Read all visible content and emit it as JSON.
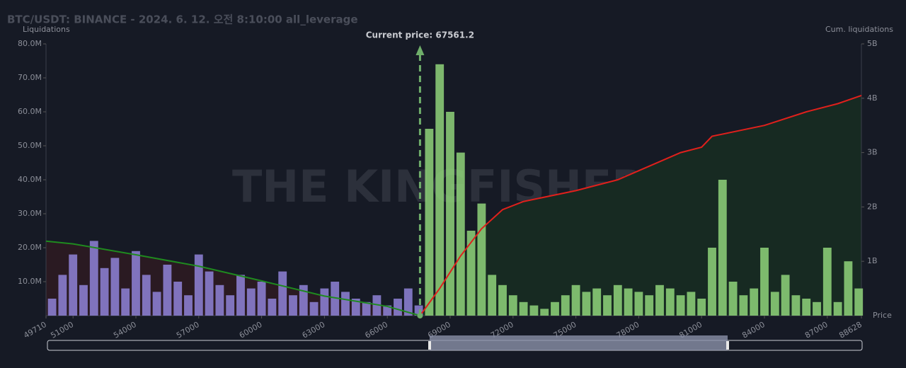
{
  "chart_data": {
    "type": "bar",
    "title": "BTC/USDT: BINANCE - 2024. 6. 12. 오전 8:10:00 all_leverage",
    "y_label": "Liquidations",
    "y2_label": "Cum. liquidations",
    "x_label": "Price",
    "watermark": "THE KINGFISHER",
    "annotation": {
      "text": "Current price: 67561.2",
      "x": 67561.2
    },
    "xlim": [
      49710,
      88628
    ],
    "xticks": [
      49710,
      51000,
      54000,
      57000,
      60000,
      63000,
      66000,
      69000,
      72000,
      75000,
      78000,
      81000,
      84000,
      87000,
      88628
    ],
    "ylim": [
      0,
      80000000
    ],
    "yticks": [
      {
        "value": 10000000,
        "label": "10.0M"
      },
      {
        "value": 20000000,
        "label": "20.0M"
      },
      {
        "value": 30000000,
        "label": "30.0M"
      },
      {
        "value": 40000000,
        "label": "40.0M"
      },
      {
        "value": 50000000,
        "label": "50.0M"
      },
      {
        "value": 60000000,
        "label": "60.0M"
      },
      {
        "value": 70000000,
        "label": "70.0M"
      },
      {
        "value": 80000000,
        "label": "80.0M"
      }
    ],
    "y2lim": [
      0,
      5000000000
    ],
    "y2ticks": [
      {
        "value": 1000000000,
        "label": "1B"
      },
      {
        "value": 2000000000,
        "label": "2B"
      },
      {
        "value": 3000000000,
        "label": "3B"
      },
      {
        "value": 4000000000,
        "label": "4B"
      },
      {
        "value": 5000000000,
        "label": "5B"
      }
    ],
    "series": [
      {
        "type": "bar",
        "color": "#8f84d8",
        "x": [
          50000,
          50500,
          51000,
          51500,
          52000,
          52500,
          53000,
          53500,
          54000,
          54500,
          55000,
          55500,
          56000,
          56500,
          57000,
          57500,
          58000,
          58500,
          59000,
          59500,
          60000,
          60500,
          61000,
          61500,
          62000,
          62500,
          63000,
          63500,
          64000,
          64500,
          65000,
          65500,
          66000,
          66500,
          67000,
          67500
        ],
        "values": [
          5000000,
          12000000,
          18000000,
          9000000,
          22000000,
          14000000,
          17000000,
          8000000,
          19000000,
          12000000,
          7000000,
          15000000,
          10000000,
          6000000,
          18000000,
          13000000,
          9000000,
          6000000,
          12000000,
          8000000,
          10000000,
          5000000,
          13000000,
          6000000,
          9000000,
          4000000,
          8000000,
          10000000,
          7000000,
          5000000,
          4000000,
          6000000,
          3000000,
          5000000,
          8000000,
          3000000
        ]
      },
      {
        "type": "bar",
        "color": "#8fd47a",
        "x": [
          68000,
          68500,
          69000,
          69500,
          70000,
          70500,
          71000,
          71500,
          72000,
          72500,
          73000,
          73500,
          74000,
          74500,
          75000,
          75500,
          76000,
          76500,
          77000,
          77500,
          78000,
          78500,
          79000,
          79500,
          80000,
          80500,
          81000,
          81500,
          82000,
          82500,
          83000,
          83500,
          84000,
          84500,
          85000,
          85500,
          86000,
          86500,
          87000,
          87500,
          88000,
          88500
        ],
        "values": [
          55000000,
          74000000,
          60000000,
          48000000,
          25000000,
          33000000,
          12000000,
          9000000,
          6000000,
          4000000,
          3000000,
          2000000,
          4000000,
          6000000,
          9000000,
          7000000,
          8000000,
          6000000,
          9000000,
          8000000,
          7000000,
          6000000,
          9000000,
          8000000,
          6000000,
          7000000,
          5000000,
          20000000,
          40000000,
          10000000,
          6000000,
          8000000,
          20000000,
          7000000,
          12000000,
          6000000,
          5000000,
          4000000,
          20000000,
          4000000,
          16000000,
          8000000
        ]
      },
      {
        "type": "line",
        "axis": "y2",
        "color": "#1f8a1f",
        "fill": "#2a1a22",
        "x": [
          49710,
          51000,
          54000,
          57000,
          60000,
          63000,
          66000,
          67561.2
        ],
        "values": [
          1370000000,
          1320000000,
          1120000000,
          910000000,
          640000000,
          360000000,
          170000000,
          0
        ]
      },
      {
        "type": "line",
        "axis": "y2",
        "color": "#e0201c",
        "fill": "#172a22",
        "x": [
          67561.2,
          68500,
          69500,
          70500,
          71500,
          72500,
          75000,
          77000,
          78500,
          80000,
          81000,
          81500,
          84000,
          86000,
          87500,
          88628
        ],
        "values": [
          0,
          500000000,
          1100000000,
          1600000000,
          1950000000,
          2100000000,
          2300000000,
          2500000000,
          2750000000,
          3000000000,
          3100000000,
          3300000000,
          3500000000,
          3750000000,
          3900000000,
          4050000000
        ]
      }
    ]
  }
}
